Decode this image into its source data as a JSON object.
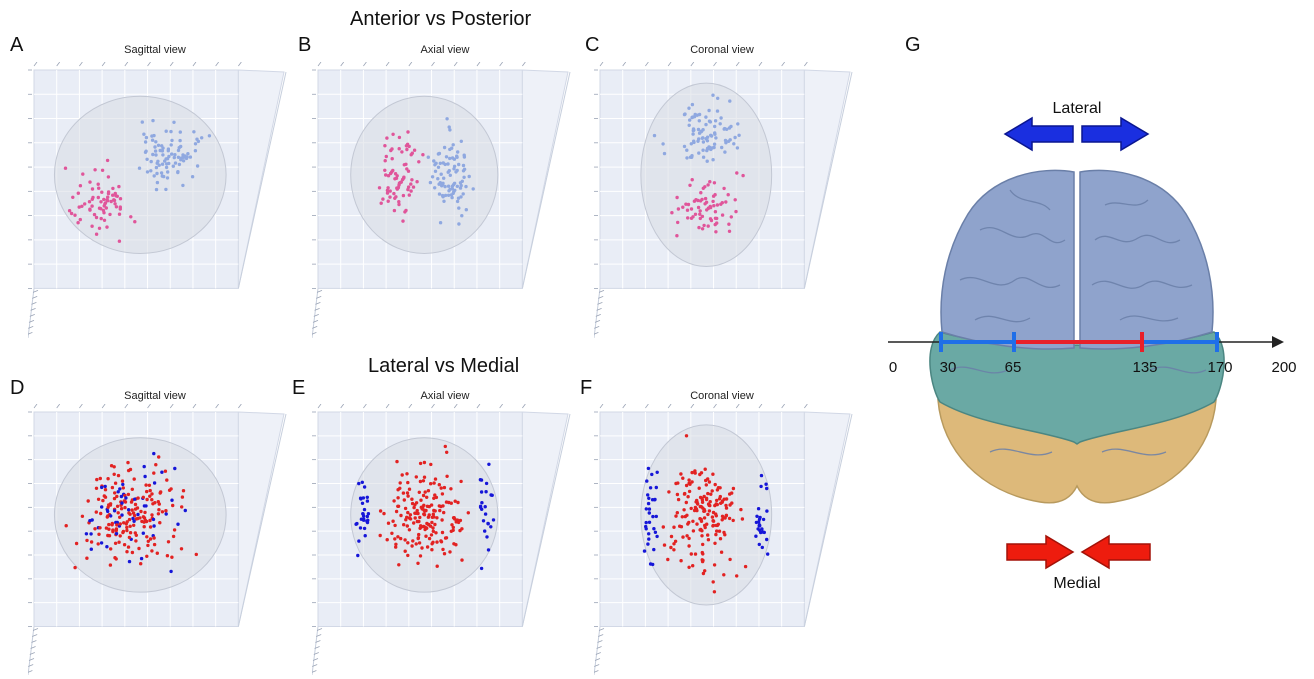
{
  "sections": {
    "top_title": "Anterior vs Posterior",
    "bottom_title": "Lateral vs Medial"
  },
  "panels": [
    {
      "letter": "A",
      "view": "Sagittal view"
    },
    {
      "letter": "B",
      "view": "Axial view"
    },
    {
      "letter": "C",
      "view": "Coronal view"
    },
    {
      "letter": "D",
      "view": "Sagittal view"
    },
    {
      "letter": "E",
      "view": "Axial view"
    },
    {
      "letter": "F",
      "view": "Coronal view"
    }
  ],
  "panel_g": {
    "letter": "G",
    "lateral_label": "Lateral",
    "medial_label": "Medial",
    "axis_ticks": [
      "0",
      "30",
      "65",
      "135",
      "170",
      "200"
    ],
    "lateral_arrow_color": "#1a2fe0",
    "medial_arrow_color": "#ee1c0e",
    "lateral_segment_color": "#1f6fe8",
    "medial_segment_color": "#e8202a",
    "lobe_colors": {
      "frontal": "#8fa3cc",
      "parietal": "#6aa9a4",
      "occipital": "#ddb97a"
    }
  },
  "colors": {
    "anterior_points": "#e0559a",
    "posterior_points": "#8fa8e0",
    "lateral_points": "#1616d8",
    "medial_points": "#e22222",
    "grid_bg": "#e9edf6"
  }
}
